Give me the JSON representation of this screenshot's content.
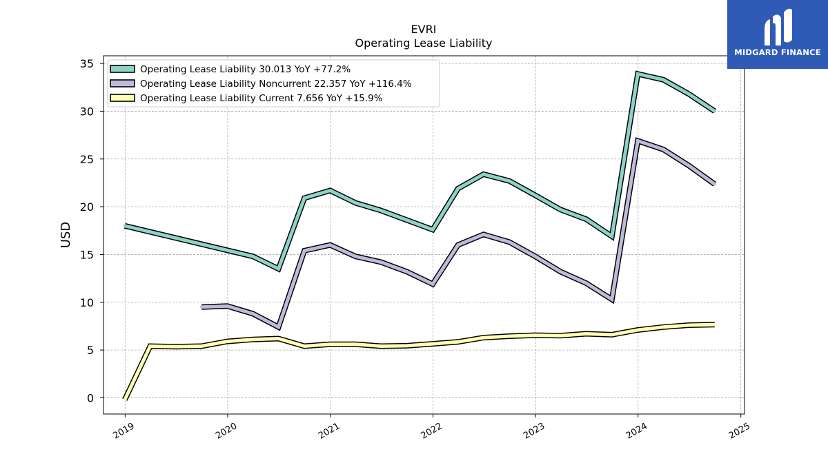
{
  "chart_data": {
    "type": "line",
    "title": "EVRI",
    "subtitle": "Operating Lease Liability",
    "ylabel": "USD",
    "xlabel": "",
    "ylim": [
      -1.7,
      35.8
    ],
    "xlim": [
      "2018-10-16",
      "2025-01-14"
    ],
    "y_ticks": [
      0,
      5,
      10,
      15,
      20,
      25,
      30,
      35
    ],
    "x_ticks": [
      "2019",
      "2020",
      "2021",
      "2022",
      "2023",
      "2024",
      "2025"
    ],
    "grid": true,
    "legend_position": "top-left",
    "series": [
      {
        "name": "Operating Lease Liability  30.013 YoY +77.2%",
        "color": "#8dd3c7",
        "points": [
          [
            "2018-12-31",
            18.0
          ],
          [
            "2020-03-31",
            14.8
          ],
          [
            "2020-06-30",
            13.5
          ],
          [
            "2020-09-30",
            20.9
          ],
          [
            "2020-12-31",
            21.7
          ],
          [
            "2021-03-31",
            20.4
          ],
          [
            "2021-06-30",
            19.6
          ],
          [
            "2021-09-30",
            18.6
          ],
          [
            "2021-12-31",
            17.6
          ],
          [
            "2022-03-31",
            21.9
          ],
          [
            "2022-06-30",
            23.4
          ],
          [
            "2022-09-30",
            22.7
          ],
          [
            "2022-12-31",
            21.2
          ],
          [
            "2023-03-31",
            19.7
          ],
          [
            "2023-06-30",
            18.7
          ],
          [
            "2023-09-30",
            16.9
          ],
          [
            "2023-12-31",
            33.9
          ],
          [
            "2024-03-31",
            33.3
          ],
          [
            "2024-06-30",
            31.8
          ],
          [
            "2024-09-30",
            30.0
          ]
        ]
      },
      {
        "name": "Operating Lease Liability Noncurrent  22.357 YoY +116.4%",
        "color": "#bebada",
        "points": [
          [
            "2019-09-30",
            9.5
          ],
          [
            "2019-12-31",
            9.6
          ],
          [
            "2020-03-31",
            8.8
          ],
          [
            "2020-06-30",
            7.4
          ],
          [
            "2020-09-30",
            15.4
          ],
          [
            "2020-12-31",
            16.0
          ],
          [
            "2021-03-31",
            14.8
          ],
          [
            "2021-06-30",
            14.2
          ],
          [
            "2021-09-30",
            13.2
          ],
          [
            "2021-12-31",
            11.9
          ],
          [
            "2022-03-31",
            16.0
          ],
          [
            "2022-06-30",
            17.1
          ],
          [
            "2022-09-30",
            16.3
          ],
          [
            "2022-12-31",
            14.8
          ],
          [
            "2023-03-31",
            13.2
          ],
          [
            "2023-06-30",
            12.0
          ],
          [
            "2023-09-30",
            10.3
          ],
          [
            "2023-12-31",
            26.9
          ],
          [
            "2024-03-31",
            26.0
          ],
          [
            "2024-06-30",
            24.3
          ],
          [
            "2024-09-30",
            22.357
          ]
        ]
      },
      {
        "name": "Operating Lease Liability Current  7.656 YoY +15.9%",
        "color": "#ffffb3",
        "points": [
          [
            "2018-12-31",
            -0.2
          ],
          [
            "2019-03-31",
            5.4
          ],
          [
            "2019-06-30",
            5.35
          ],
          [
            "2019-09-30",
            5.4
          ],
          [
            "2019-12-31",
            5.9
          ],
          [
            "2020-03-31",
            6.1
          ],
          [
            "2020-06-30",
            6.2
          ],
          [
            "2020-09-30",
            5.4
          ],
          [
            "2020-12-31",
            5.6
          ],
          [
            "2021-03-31",
            5.6
          ],
          [
            "2021-06-30",
            5.4
          ],
          [
            "2021-09-30",
            5.45
          ],
          [
            "2021-12-31",
            5.65
          ],
          [
            "2022-03-31",
            5.85
          ],
          [
            "2022-06-30",
            6.3
          ],
          [
            "2022-09-30",
            6.45
          ],
          [
            "2022-12-31",
            6.55
          ],
          [
            "2023-03-31",
            6.5
          ],
          [
            "2023-06-30",
            6.7
          ],
          [
            "2023-09-30",
            6.6
          ],
          [
            "2023-12-31",
            7.1
          ],
          [
            "2024-03-31",
            7.4
          ],
          [
            "2024-06-30",
            7.6
          ],
          [
            "2024-09-30",
            7.656
          ]
        ]
      }
    ]
  },
  "logo": {
    "text": "MIDGARD FINANCE",
    "background": "#2f5bb7"
  }
}
